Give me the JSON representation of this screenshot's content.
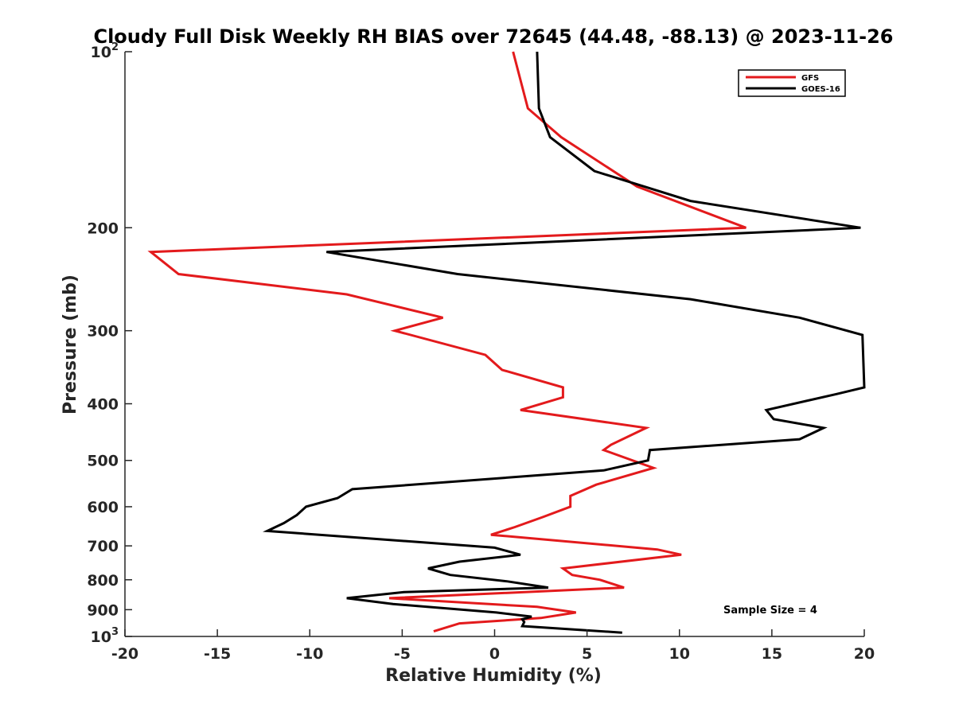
{
  "chart_data": {
    "type": "line",
    "title": "Cloudy Full Disk Weekly RH BIAS over 72645 (44.48, -88.13) @ 2023-11-26",
    "xlabel": "Relative Humidity (%)",
    "ylabel": "Pressure (mb)",
    "xlim": [
      -20,
      20
    ],
    "ylim": [
      100,
      1000
    ],
    "y_scale": "log",
    "y_reversed": true,
    "grid": false,
    "legend_position": "top-right",
    "x_ticks": [
      "-20",
      "-15",
      "-10",
      "-5",
      "0",
      "5",
      "10",
      "15",
      "20"
    ],
    "x_tick_values": [
      -20,
      -15,
      -10,
      -5,
      0,
      5,
      10,
      15,
      20
    ],
    "y_ticks": [
      {
        "value": 100,
        "label": "10",
        "sup": "2"
      },
      {
        "value": 200,
        "label": "200",
        "sup": ""
      },
      {
        "value": 300,
        "label": "300",
        "sup": ""
      },
      {
        "value": 400,
        "label": "400",
        "sup": ""
      },
      {
        "value": 500,
        "label": "500",
        "sup": ""
      },
      {
        "value": 600,
        "label": "600",
        "sup": ""
      },
      {
        "value": 700,
        "label": "700",
        "sup": ""
      },
      {
        "value": 800,
        "label": "800",
        "sup": ""
      },
      {
        "value": 900,
        "label": "900",
        "sup": ""
      },
      {
        "value": 1000,
        "label": "10",
        "sup": "3"
      }
    ],
    "annotation": "Sample Size = 4",
    "series": [
      {
        "name": "GFS",
        "color": "#e31a1c",
        "points": [
          [
            1.0,
            100
          ],
          [
            1.8,
            125
          ],
          [
            3.6,
            140
          ],
          [
            7.7,
            170
          ],
          [
            13.6,
            200
          ],
          [
            -18.6,
            220
          ],
          [
            -17.1,
            240
          ],
          [
            -8.0,
            260
          ],
          [
            -2.8,
            285
          ],
          [
            -5.4,
            300
          ],
          [
            -0.5,
            330
          ],
          [
            0.4,
            350
          ],
          [
            3.7,
            375
          ],
          [
            3.7,
            390
          ],
          [
            1.4,
            410
          ],
          [
            8.2,
            440
          ],
          [
            6.3,
            470
          ],
          [
            5.9,
            480
          ],
          [
            8.6,
            515
          ],
          [
            5.5,
            550
          ],
          [
            4.1,
            575
          ],
          [
            4.1,
            600
          ],
          [
            2.6,
            625
          ],
          [
            1.1,
            650
          ],
          [
            -0.2,
            670
          ],
          [
            8.8,
            710
          ],
          [
            10.1,
            725
          ],
          [
            3.7,
            765
          ],
          [
            4.2,
            785
          ],
          [
            5.7,
            800
          ],
          [
            7.0,
            825
          ],
          [
            -5.7,
            860
          ],
          [
            2.3,
            890
          ],
          [
            4.4,
            910
          ],
          [
            2.5,
            930
          ],
          [
            -1.9,
            950
          ],
          [
            -3.3,
            980
          ]
        ]
      },
      {
        "name": "GOES-16",
        "color": "#000000",
        "points": [
          [
            2.3,
            100
          ],
          [
            2.4,
            125
          ],
          [
            3.0,
            140
          ],
          [
            5.4,
            160
          ],
          [
            10.6,
            180
          ],
          [
            19.8,
            200
          ],
          [
            -9.1,
            220
          ],
          [
            -2.0,
            240
          ],
          [
            10.6,
            265
          ],
          [
            16.5,
            285
          ],
          [
            19.9,
            305
          ],
          [
            20.0,
            375
          ],
          [
            18.5,
            385
          ],
          [
            14.7,
            410
          ],
          [
            15.1,
            425
          ],
          [
            17.8,
            440
          ],
          [
            16.5,
            460
          ],
          [
            8.4,
            480
          ],
          [
            8.3,
            500
          ],
          [
            5.9,
            520
          ],
          [
            -7.7,
            560
          ],
          [
            -8.5,
            580
          ],
          [
            -10.2,
            600
          ],
          [
            -10.7,
            620
          ],
          [
            -11.4,
            640
          ],
          [
            -12.3,
            660
          ],
          [
            0.0,
            705
          ],
          [
            1.4,
            725
          ],
          [
            -1.9,
            745
          ],
          [
            -3.6,
            765
          ],
          [
            -2.4,
            785
          ],
          [
            0.7,
            805
          ],
          [
            2.9,
            825
          ],
          [
            -4.9,
            840
          ],
          [
            -8.0,
            860
          ],
          [
            -5.5,
            880
          ],
          [
            0.1,
            910
          ],
          [
            2.0,
            925
          ],
          [
            1.5,
            935
          ],
          [
            1.6,
            945
          ],
          [
            1.5,
            960
          ],
          [
            6.9,
            985
          ]
        ]
      }
    ]
  }
}
